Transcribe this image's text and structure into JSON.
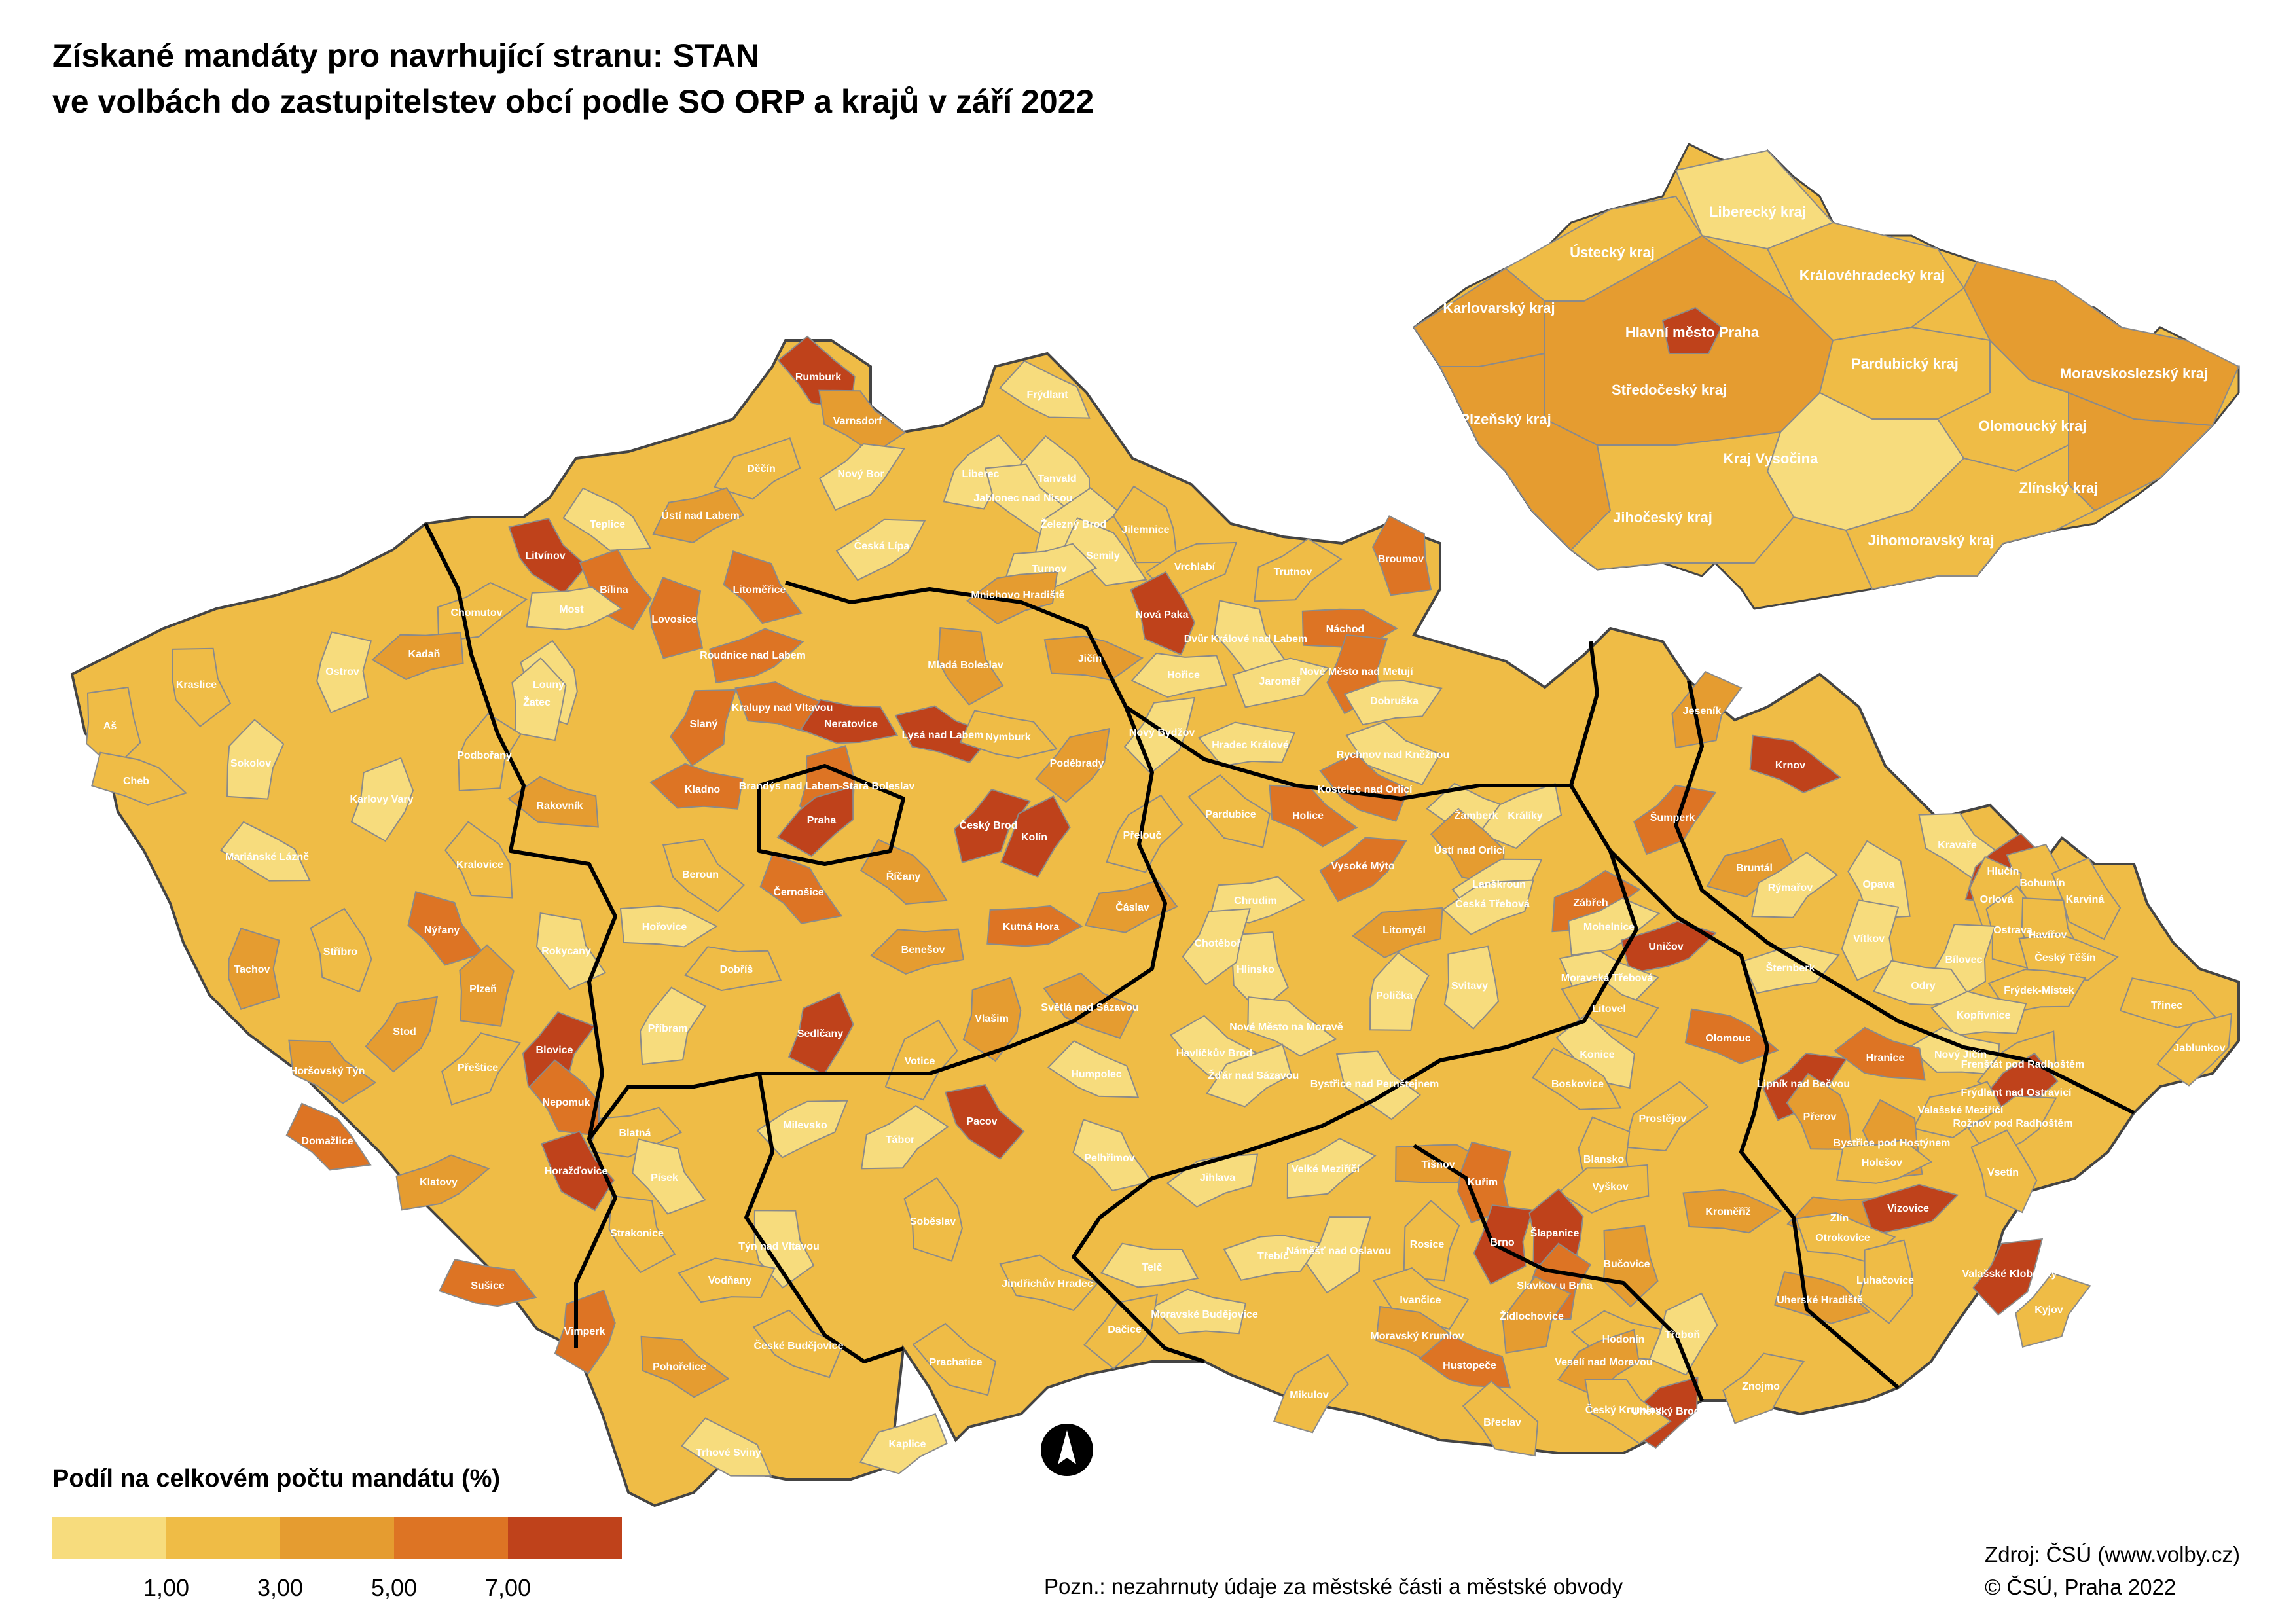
{
  "title": {
    "line1": "Získané mandáty pro navrhující stranu: STAN",
    "line2": "ve volbách do zastupitelstev obcí podle SO ORP a krajů v září 2022"
  },
  "legend": {
    "title": "Podíl na celkovém počtu mandátu (%)",
    "ticks": [
      "1,00",
      "3,00",
      "5,00",
      "7,00"
    ],
    "colors": [
      "#f7dc7d",
      "#efbc46",
      "#e59c30",
      "#dd7424",
      "#bf421b"
    ]
  },
  "note": "Pozn.: nezahrnuty údaje za městské části a městské obvody",
  "source": {
    "line1": "Zdroj: ČSÚ (www.volby.cz)",
    "line2": "© ČSÚ, Praha 2022"
  },
  "north_icon": "north-arrow-icon",
  "orp_labels": [
    {
      "name": "Rumburk",
      "class": 5
    },
    {
      "name": "Varnsdorf",
      "class": 3
    },
    {
      "name": "Frýdlant",
      "class": 1
    },
    {
      "name": "Děčín",
      "class": 2
    },
    {
      "name": "Nový Bor",
      "class": 1
    },
    {
      "name": "Liberec",
      "class": 1
    },
    {
      "name": "Tanvald",
      "class": 1
    },
    {
      "name": "Jablonec nad Nisou",
      "class": 1
    },
    {
      "name": "Teplice",
      "class": 1
    },
    {
      "name": "Ústí nad Labem",
      "class": 3
    },
    {
      "name": "Česká Lípa",
      "class": 1
    },
    {
      "name": "Železný Brod",
      "class": 1
    },
    {
      "name": "Jilemnice",
      "class": 2
    },
    {
      "name": "Litvínov",
      "class": 5
    },
    {
      "name": "Semily",
      "class": 1
    },
    {
      "name": "Turnov",
      "class": 1
    },
    {
      "name": "Vrchlabí",
      "class": 2
    },
    {
      "name": "Trutnov",
      "class": 2
    },
    {
      "name": "Broumov",
      "class": 4
    },
    {
      "name": "Bílina",
      "class": 4
    },
    {
      "name": "Litoměřice",
      "class": 4
    },
    {
      "name": "Most",
      "class": 1
    },
    {
      "name": "Mnichovo Hradiště",
      "class": 3
    },
    {
      "name": "Chomutov",
      "class": 2
    },
    {
      "name": "Lovosice",
      "class": 4
    },
    {
      "name": "Nová Paka",
      "class": 5
    },
    {
      "name": "Dvůr Králové nad Labem",
      "class": 1
    },
    {
      "name": "Náchod",
      "class": 4
    },
    {
      "name": "Kadaň",
      "class": 3
    },
    {
      "name": "Roudnice nad Labem",
      "class": 4
    },
    {
      "name": "Ostrov",
      "class": 1
    },
    {
      "name": "Louny",
      "class": 1
    },
    {
      "name": "Mladá Boleslav",
      "class": 3
    },
    {
      "name": "Jičín",
      "class": 3
    },
    {
      "name": "Hořice",
      "class": 1
    },
    {
      "name": "Jaroměř",
      "class": 1
    },
    {
      "name": "Nové Město nad Metují",
      "class": 4
    },
    {
      "name": "Žatec",
      "class": 1
    },
    {
      "name": "Kraslice",
      "class": 2
    },
    {
      "name": "Kralupy nad Vltavou",
      "class": 4
    },
    {
      "name": "Neratovice",
      "class": 5
    },
    {
      "name": "Dobruška",
      "class": 1
    },
    {
      "name": "Slaný",
      "class": 4
    },
    {
      "name": "Sokolov",
      "class": 1
    },
    {
      "name": "Aš",
      "class": 2
    },
    {
      "name": "Lysá nad Labem",
      "class": 5
    },
    {
      "name": "Nymburk",
      "class": 2
    },
    {
      "name": "Hradec Králové",
      "class": 1
    },
    {
      "name": "Nový Bydžov",
      "class": 1
    },
    {
      "name": "Podbořany",
      "class": 2
    },
    {
      "name": "Brandýs nad Labem-Stará Boleslav",
      "class": 4
    },
    {
      "name": "Rychnov nad Kněžnou",
      "class": 1
    },
    {
      "name": "Cheb",
      "class": 2
    },
    {
      "name": "Kladno",
      "class": 4
    },
    {
      "name": "Poděbrady",
      "class": 3
    },
    {
      "name": "Jeseník",
      "class": 3
    },
    {
      "name": "Karlovy Vary",
      "class": 1
    },
    {
      "name": "Kostelec nad Orlicí",
      "class": 4
    },
    {
      "name": "Krnov",
      "class": 5
    },
    {
      "name": "Rakovník",
      "class": 3
    },
    {
      "name": "Praha",
      "class": 5
    },
    {
      "name": "Český Brod",
      "class": 5
    },
    {
      "name": "Kolín",
      "class": 5
    },
    {
      "name": "Pardubice",
      "class": 2
    },
    {
      "name": "Holice",
      "class": 4
    },
    {
      "name": "Žamberk",
      "class": 1
    },
    {
      "name": "Králíky",
      "class": 1
    },
    {
      "name": "Šumperk",
      "class": 4
    },
    {
      "name": "Přelouč",
      "class": 2
    },
    {
      "name": "Ústí nad Orlicí",
      "class": 3
    },
    {
      "name": "Kravaře",
      "class": 1
    },
    {
      "name": "Mariánské Lázně",
      "class": 1
    },
    {
      "name": "Bruntál",
      "class": 3
    },
    {
      "name": "Vysoké Mýto",
      "class": 4
    },
    {
      "name": "Hlučín",
      "class": 5
    },
    {
      "name": "Kralovice",
      "class": 2
    },
    {
      "name": "Beroun",
      "class": 2
    },
    {
      "name": "Říčany",
      "class": 3
    },
    {
      "name": "Čáslav",
      "class": 3
    },
    {
      "name": "Lanškroun",
      "class": 1
    },
    {
      "name": "Rýmařov",
      "class": 1
    },
    {
      "name": "Opava",
      "class": 1
    },
    {
      "name": "Bohumín",
      "class": 2
    },
    {
      "name": "Černošice",
      "class": 4
    },
    {
      "name": "Chrudim",
      "class": 1
    },
    {
      "name": "Česká Třebová",
      "class": 1
    },
    {
      "name": "Zábřeh",
      "class": 4
    },
    {
      "name": "Orlová",
      "class": 2
    },
    {
      "name": "Karviná",
      "class": 2
    },
    {
      "name": "Nýřany",
      "class": 4
    },
    {
      "name": "Kutná Hora",
      "class": 4
    },
    {
      "name": "Litomyšl",
      "class": 3
    },
    {
      "name": "Mohelnice",
      "class": 1
    },
    {
      "name": "Tachov",
      "class": 3
    },
    {
      "name": "Stříbro",
      "class": 2
    },
    {
      "name": "Rokycany",
      "class": 1
    },
    {
      "name": "Hořovice",
      "class": 1
    },
    {
      "name": "Benešov",
      "class": 3
    },
    {
      "name": "Uničov",
      "class": 5
    },
    {
      "name": "Vítkov",
      "class": 1
    },
    {
      "name": "Ostrava",
      "class": 2
    },
    {
      "name": "Havířov",
      "class": 2
    },
    {
      "name": "Český Těšín",
      "class": 2
    },
    {
      "name": "Dobříš",
      "class": 2
    },
    {
      "name": "Šternberk",
      "class": 1
    },
    {
      "name": "Bílovec",
      "class": 1
    },
    {
      "name": "Plzeň",
      "class": 3
    },
    {
      "name": "Hlinsko",
      "class": 1
    },
    {
      "name": "Moravská Třebová",
      "class": 1
    },
    {
      "name": "Odry",
      "class": 1
    },
    {
      "name": "Frýdek-Místek",
      "class": 2
    },
    {
      "name": "Chotěboř",
      "class": 1
    },
    {
      "name": "Polička",
      "class": 1
    },
    {
      "name": "Svitavy",
      "class": 1
    },
    {
      "name": "Litovel",
      "class": 2
    },
    {
      "name": "Třinec",
      "class": 2
    },
    {
      "name": "Kopřivnice",
      "class": 1
    },
    {
      "name": "Stod",
      "class": 3
    },
    {
      "name": "Příbram",
      "class": 1
    },
    {
      "name": "Vlašim",
      "class": 3
    },
    {
      "name": "Světlá nad Sázavou",
      "class": 3
    },
    {
      "name": "Olomouc",
      "class": 4
    },
    {
      "name": "Nový Jičín",
      "class": 1
    },
    {
      "name": "Jablunkov",
      "class": 2
    },
    {
      "name": "Blovice",
      "class": 5
    },
    {
      "name": "Sedlčany",
      "class": 5
    },
    {
      "name": "Havlíčkův Brod",
      "class": 1
    },
    {
      "name": "Nové Město na Moravě",
      "class": 1
    },
    {
      "name": "Hranice",
      "class": 4
    },
    {
      "name": "Frenštát pod Radhoštěm",
      "class": 2
    },
    {
      "name": "Přeštice",
      "class": 2
    },
    {
      "name": "Votice",
      "class": 2
    },
    {
      "name": "Konice",
      "class": 1
    },
    {
      "name": "Horšovský Týn",
      "class": 3
    },
    {
      "name": "Humpolec",
      "class": 1
    },
    {
      "name": "Žďár nad Sázavou",
      "class": 1
    },
    {
      "name": "Lipník nad Bečvou",
      "class": 5
    },
    {
      "name": "Frýdlant nad Ostravicí",
      "class": 5
    },
    {
      "name": "Nepomuk",
      "class": 4
    },
    {
      "name": "Bystřice nad Pernštejnem",
      "class": 1
    },
    {
      "name": "Boskovice",
      "class": 2
    },
    {
      "name": "Valašské Meziříčí",
      "class": 2
    },
    {
      "name": "Rožnov pod Radhoštěm",
      "class": 2
    },
    {
      "name": "Prostějov",
      "class": 2
    },
    {
      "name": "Přerov",
      "class": 3
    },
    {
      "name": "Pacov",
      "class": 5
    },
    {
      "name": "Domažlice",
      "class": 4
    },
    {
      "name": "Blatná",
      "class": 2
    },
    {
      "name": "Milevsko",
      "class": 1
    },
    {
      "name": "Tábor",
      "class": 1
    },
    {
      "name": "Bystřice pod Hostýnem",
      "class": 3
    },
    {
      "name": "Horažďovice",
      "class": 5
    },
    {
      "name": "Pelhřimov",
      "class": 1
    },
    {
      "name": "Holešov",
      "class": 2
    },
    {
      "name": "Jihlava",
      "class": 1
    },
    {
      "name": "Velké Meziříčí",
      "class": 1
    },
    {
      "name": "Blansko",
      "class": 2
    },
    {
      "name": "Vsetín",
      "class": 2
    },
    {
      "name": "Písek",
      "class": 1
    },
    {
      "name": "Tišnov",
      "class": 3
    },
    {
      "name": "Vyškov",
      "class": 2
    },
    {
      "name": "Klatovy",
      "class": 3
    },
    {
      "name": "Kuřim",
      "class": 4
    },
    {
      "name": "Soběslav",
      "class": 2
    },
    {
      "name": "Strakonice",
      "class": 2
    },
    {
      "name": "Kroměříž",
      "class": 3
    },
    {
      "name": "Zlín",
      "class": 3
    },
    {
      "name": "Vizovice",
      "class": 5
    },
    {
      "name": "Brno",
      "class": 5
    },
    {
      "name": "Šlapanice",
      "class": 5
    },
    {
      "name": "Týn nad Vltavou",
      "class": 1
    },
    {
      "name": "Otrokovice",
      "class": 2
    },
    {
      "name": "Telč",
      "class": 1
    },
    {
      "name": "Třebíč",
      "class": 1
    },
    {
      "name": "Náměšť nad Oslavou",
      "class": 1
    },
    {
      "name": "Rosice",
      "class": 2
    },
    {
      "name": "Bučovice",
      "class": 3
    },
    {
      "name": "Jindřichův Hradec",
      "class": 2
    },
    {
      "name": "Sušice",
      "class": 4
    },
    {
      "name": "Vodňany",
      "class": 2
    },
    {
      "name": "Valašské Klobouky",
      "class": 5
    },
    {
      "name": "Slavkov u Brna",
      "class": 4
    },
    {
      "name": "Luhačovice",
      "class": 2
    },
    {
      "name": "Ivančice",
      "class": 2
    },
    {
      "name": "Uherské Hradiště",
      "class": 3
    },
    {
      "name": "Moravské Budějovice",
      "class": 1
    },
    {
      "name": "Dačice",
      "class": 2
    },
    {
      "name": "Židlochovice",
      "class": 3
    },
    {
      "name": "Vimperk",
      "class": 4
    },
    {
      "name": "České Budějovice",
      "class": 2
    },
    {
      "name": "Moravský Krumlov",
      "class": 3
    },
    {
      "name": "Hodonín",
      "class": 2
    },
    {
      "name": "Uherský Brod",
      "class": 5
    },
    {
      "name": "Kyjov",
      "class": 2
    },
    {
      "name": "Třeboň",
      "class": 1
    },
    {
      "name": "Prachatice",
      "class": 2
    },
    {
      "name": "Pohořelice",
      "class": 3
    },
    {
      "name": "Hustopeče",
      "class": 4
    },
    {
      "name": "Veselí nad Moravou",
      "class": 3
    },
    {
      "name": "Znojmo",
      "class": 2
    },
    {
      "name": "Mikulov",
      "class": 2
    },
    {
      "name": "Břeclav",
      "class": 2
    },
    {
      "name": "Český Krumlov",
      "class": 2
    },
    {
      "name": "Trhové Sviny",
      "class": 1
    },
    {
      "name": "Kaplice",
      "class": 1
    }
  ],
  "kraj_labels": [
    {
      "name": "Liberecký kraj",
      "class": 1
    },
    {
      "name": "Ústecký kraj",
      "class": 3
    },
    {
      "name": "Královéhradecký kraj",
      "class": 1
    },
    {
      "name": "Karlovarský kraj",
      "class": 2
    },
    {
      "name": "Hlavní město Praha",
      "class": 5
    },
    {
      "name": "Pardubický kraj",
      "class": 2
    },
    {
      "name": "Moravskoslezský kraj",
      "class": 2
    },
    {
      "name": "Středočeský kraj",
      "class": 3
    },
    {
      "name": "Olomoucký kraj",
      "class": 3
    },
    {
      "name": "Plzeňský kraj",
      "class": 3
    },
    {
      "name": "Kraj Vysočina",
      "class": 1
    },
    {
      "name": "Zlínský kraj",
      "class": 3
    },
    {
      "name": "Jihočeský kraj",
      "class": 2
    },
    {
      "name": "Jihomoravský kraj",
      "class": 2
    }
  ]
}
